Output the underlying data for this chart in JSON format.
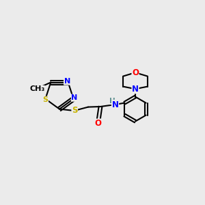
{
  "background_color": "#ebebeb",
  "bond_color": "#000000",
  "atom_colors": {
    "N": "#0000ff",
    "S": "#c8b400",
    "O": "#ff0000",
    "C": "#000000",
    "H": "#5f9090"
  },
  "figsize": [
    3.0,
    3.0
  ],
  "dpi": 100
}
